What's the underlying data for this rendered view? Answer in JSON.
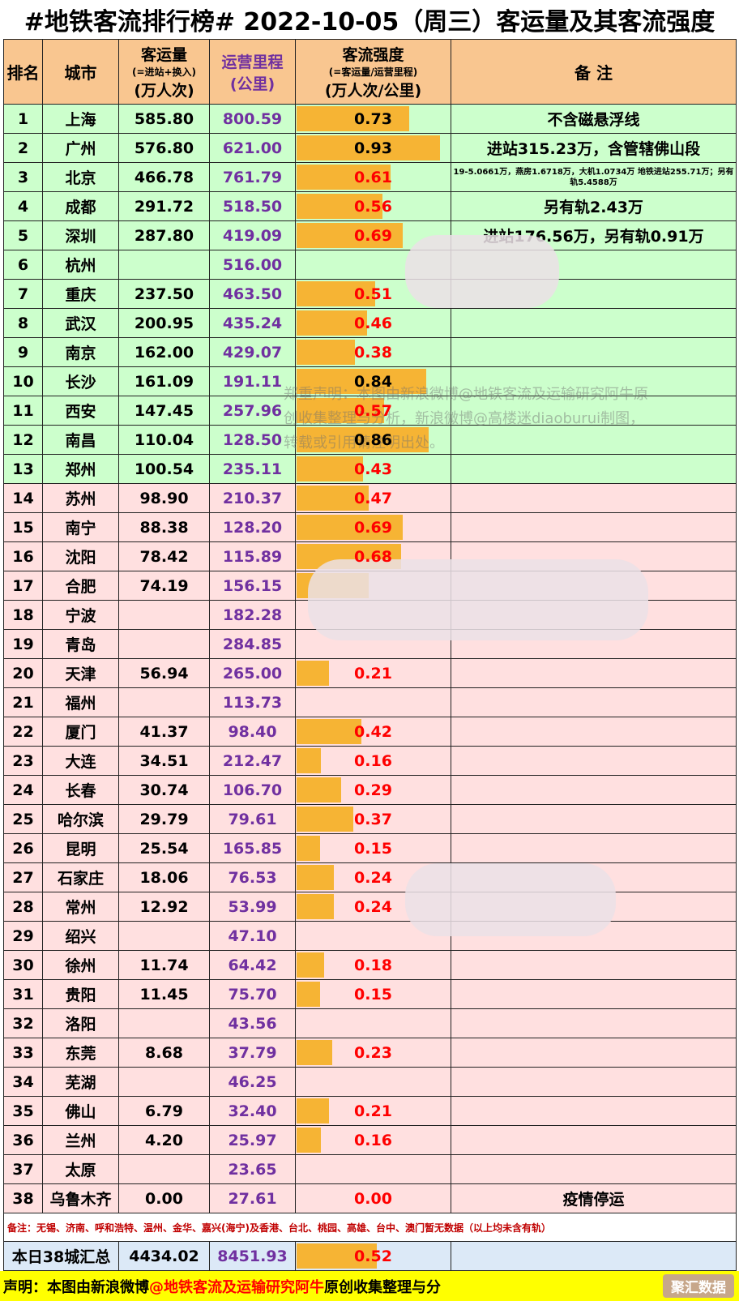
{
  "title": "#地铁客流排行榜# 2022-10-05（周三）客运量及其客流强度",
  "header": {
    "rank": "排名",
    "city": "城市",
    "volume_title": "客运量",
    "volume_sub": "(=进站+换入)",
    "volume_unit": "(万人次)",
    "length_title": "运营里程",
    "length_unit": "(公里)",
    "intensity_title": "客流强度",
    "intensity_sub": "(=客运量/运营里程)",
    "intensity_unit": "(万人次/公里)",
    "note": "备 注"
  },
  "rows": [
    {
      "rank": "1",
      "city": "上海",
      "volume": "585.80",
      "length": "800.59",
      "intensity": "0.73",
      "value": 0.73,
      "color": "black",
      "note": "不含磁悬浮线"
    },
    {
      "rank": "2",
      "city": "广州",
      "volume": "576.80",
      "length": "621.00",
      "intensity": "0.93",
      "value": 0.93,
      "color": "black",
      "note": "进站315.23万，含管辖佛山段"
    },
    {
      "rank": "3",
      "city": "北京",
      "volume": "466.78",
      "length": "761.79",
      "intensity": "0.61",
      "value": 0.61,
      "color": "red",
      "note": "19-5.0661万，燕房1.6718万，大机1.0734万 地铁进站255.71万；另有轨5.4588万"
    },
    {
      "rank": "4",
      "city": "成都",
      "volume": "291.72",
      "length": "518.50",
      "intensity": "0.56",
      "value": 0.56,
      "color": "red",
      "note": "另有轨2.43万"
    },
    {
      "rank": "5",
      "city": "深圳",
      "volume": "287.80",
      "length": "419.09",
      "intensity": "0.69",
      "value": 0.69,
      "color": "red",
      "note": "进站176.56万，另有轨0.91万"
    },
    {
      "rank": "6",
      "city": "杭州",
      "volume": "",
      "length": "516.00",
      "intensity": "",
      "value": 0,
      "color": "red",
      "note": ""
    },
    {
      "rank": "7",
      "city": "重庆",
      "volume": "237.50",
      "length": "463.50",
      "intensity": "0.51",
      "value": 0.51,
      "color": "red",
      "note": ""
    },
    {
      "rank": "8",
      "city": "武汉",
      "volume": "200.95",
      "length": "435.24",
      "intensity": "0.46",
      "value": 0.46,
      "color": "red",
      "note": ""
    },
    {
      "rank": "9",
      "city": "南京",
      "volume": "162.00",
      "length": "429.07",
      "intensity": "0.38",
      "value": 0.38,
      "color": "red",
      "note": ""
    },
    {
      "rank": "10",
      "city": "长沙",
      "volume": "161.09",
      "length": "191.11",
      "intensity": "0.84",
      "value": 0.84,
      "color": "black",
      "note": ""
    },
    {
      "rank": "11",
      "city": "西安",
      "volume": "147.45",
      "length": "257.96",
      "intensity": "0.57",
      "value": 0.57,
      "color": "red",
      "note": ""
    },
    {
      "rank": "12",
      "city": "南昌",
      "volume": "110.04",
      "length": "128.50",
      "intensity": "0.86",
      "value": 0.86,
      "color": "black",
      "note": ""
    },
    {
      "rank": "13",
      "city": "郑州",
      "volume": "100.54",
      "length": "235.11",
      "intensity": "0.43",
      "value": 0.43,
      "color": "red",
      "note": ""
    },
    {
      "rank": "14",
      "city": "苏州",
      "volume": "98.90",
      "length": "210.37",
      "intensity": "0.47",
      "value": 0.47,
      "color": "red",
      "note": ""
    },
    {
      "rank": "15",
      "city": "南宁",
      "volume": "88.38",
      "length": "128.20",
      "intensity": "0.69",
      "value": 0.69,
      "color": "red",
      "note": ""
    },
    {
      "rank": "16",
      "city": "沈阳",
      "volume": "78.42",
      "length": "115.89",
      "intensity": "0.68",
      "value": 0.68,
      "color": "red",
      "note": ""
    },
    {
      "rank": "17",
      "city": "合肥",
      "volume": "74.19",
      "length": "156.15",
      "intensity": "",
      "value": 0.47,
      "color": "red",
      "note": ""
    },
    {
      "rank": "18",
      "city": "宁波",
      "volume": "",
      "length": "182.28",
      "intensity": "",
      "value": 0,
      "color": "red",
      "note": ""
    },
    {
      "rank": "19",
      "city": "青岛",
      "volume": "",
      "length": "284.85",
      "intensity": "",
      "value": 0,
      "color": "red",
      "note": ""
    },
    {
      "rank": "20",
      "city": "天津",
      "volume": "56.94",
      "length": "265.00",
      "intensity": "0.21",
      "value": 0.21,
      "color": "red",
      "note": ""
    },
    {
      "rank": "21",
      "city": "福州",
      "volume": "",
      "length": "113.73",
      "intensity": "",
      "value": 0,
      "color": "red",
      "note": ""
    },
    {
      "rank": "22",
      "city": "厦门",
      "volume": "41.37",
      "length": "98.40",
      "intensity": "0.42",
      "value": 0.42,
      "color": "red",
      "note": ""
    },
    {
      "rank": "23",
      "city": "大连",
      "volume": "34.51",
      "length": "212.47",
      "intensity": "0.16",
      "value": 0.16,
      "color": "red",
      "note": ""
    },
    {
      "rank": "24",
      "city": "长春",
      "volume": "30.74",
      "length": "106.70",
      "intensity": "0.29",
      "value": 0.29,
      "color": "red",
      "note": ""
    },
    {
      "rank": "25",
      "city": "哈尔滨",
      "volume": "29.79",
      "length": "79.61",
      "intensity": "0.37",
      "value": 0.37,
      "color": "red",
      "note": ""
    },
    {
      "rank": "26",
      "city": "昆明",
      "volume": "25.54",
      "length": "165.85",
      "intensity": "0.15",
      "value": 0.15,
      "color": "red",
      "note": ""
    },
    {
      "rank": "27",
      "city": "石家庄",
      "volume": "18.06",
      "length": "76.53",
      "intensity": "0.24",
      "value": 0.24,
      "color": "red",
      "note": ""
    },
    {
      "rank": "28",
      "city": "常州",
      "volume": "12.92",
      "length": "53.99",
      "intensity": "0.24",
      "value": 0.24,
      "color": "red",
      "note": ""
    },
    {
      "rank": "29",
      "city": "绍兴",
      "volume": "",
      "length": "47.10",
      "intensity": "",
      "value": 0,
      "color": "red",
      "note": ""
    },
    {
      "rank": "30",
      "city": "徐州",
      "volume": "11.74",
      "length": "64.42",
      "intensity": "0.18",
      "value": 0.18,
      "color": "red",
      "note": ""
    },
    {
      "rank": "31",
      "city": "贵阳",
      "volume": "11.45",
      "length": "75.70",
      "intensity": "0.15",
      "value": 0.15,
      "color": "red",
      "note": ""
    },
    {
      "rank": "32",
      "city": "洛阳",
      "volume": "",
      "length": "43.56",
      "intensity": "",
      "value": 0,
      "color": "red",
      "note": ""
    },
    {
      "rank": "33",
      "city": "东莞",
      "volume": "8.68",
      "length": "37.79",
      "intensity": "0.23",
      "value": 0.23,
      "color": "red",
      "note": ""
    },
    {
      "rank": "34",
      "city": "芜湖",
      "volume": "",
      "length": "46.25",
      "intensity": "",
      "value": 0,
      "color": "red",
      "note": ""
    },
    {
      "rank": "35",
      "city": "佛山",
      "volume": "6.79",
      "length": "32.40",
      "intensity": "0.21",
      "value": 0.21,
      "color": "red",
      "note": ""
    },
    {
      "rank": "36",
      "city": "兰州",
      "volume": "4.20",
      "length": "25.97",
      "intensity": "0.16",
      "value": 0.16,
      "color": "red",
      "note": ""
    },
    {
      "rank": "37",
      "city": "太原",
      "volume": "",
      "length": "23.65",
      "intensity": "",
      "value": 0,
      "color": "red",
      "note": ""
    },
    {
      "rank": "38",
      "city": "乌鲁木齐",
      "volume": "0.00",
      "length": "27.61",
      "intensity": "0.00",
      "value": 0,
      "color": "red",
      "note": "疫情停运"
    }
  ],
  "remark": "备注：无锡、济南、呼和浩特、温州、金华、嘉兴(海宁)及香港、台北、桃园、高雄、台中、澳门暂无数据（以上均未含有轨）",
  "total": {
    "label": "本日38城汇总",
    "volume": "4434.02",
    "length": "8451.93",
    "intensity": "0.52",
    "value": 0.52
  },
  "watermark": "郑重声明：本图由新浪微博@地铁客流及运输研究阿牛原创收集整理与分析，新浪微博@高楼迷diaoburui制图，转载或引用请注明出处。",
  "footer": {
    "prefix": "声明：本图由新浪微博",
    "highlight": "@地铁客流及运输研究阿牛",
    "suffix": "原创收集整理与分",
    "brand": "聚汇数据"
  },
  "colors": {
    "header_bg": "#f9c690",
    "top_rows_bg": "#ccffcc",
    "other_rows_bg": "#ffe0e0",
    "bar": "#f6b434",
    "length_text": "#7030a0",
    "low_intensity_text": "#ff0000",
    "total_bg": "#dce9f7",
    "footer_bg": "#ffff00"
  }
}
